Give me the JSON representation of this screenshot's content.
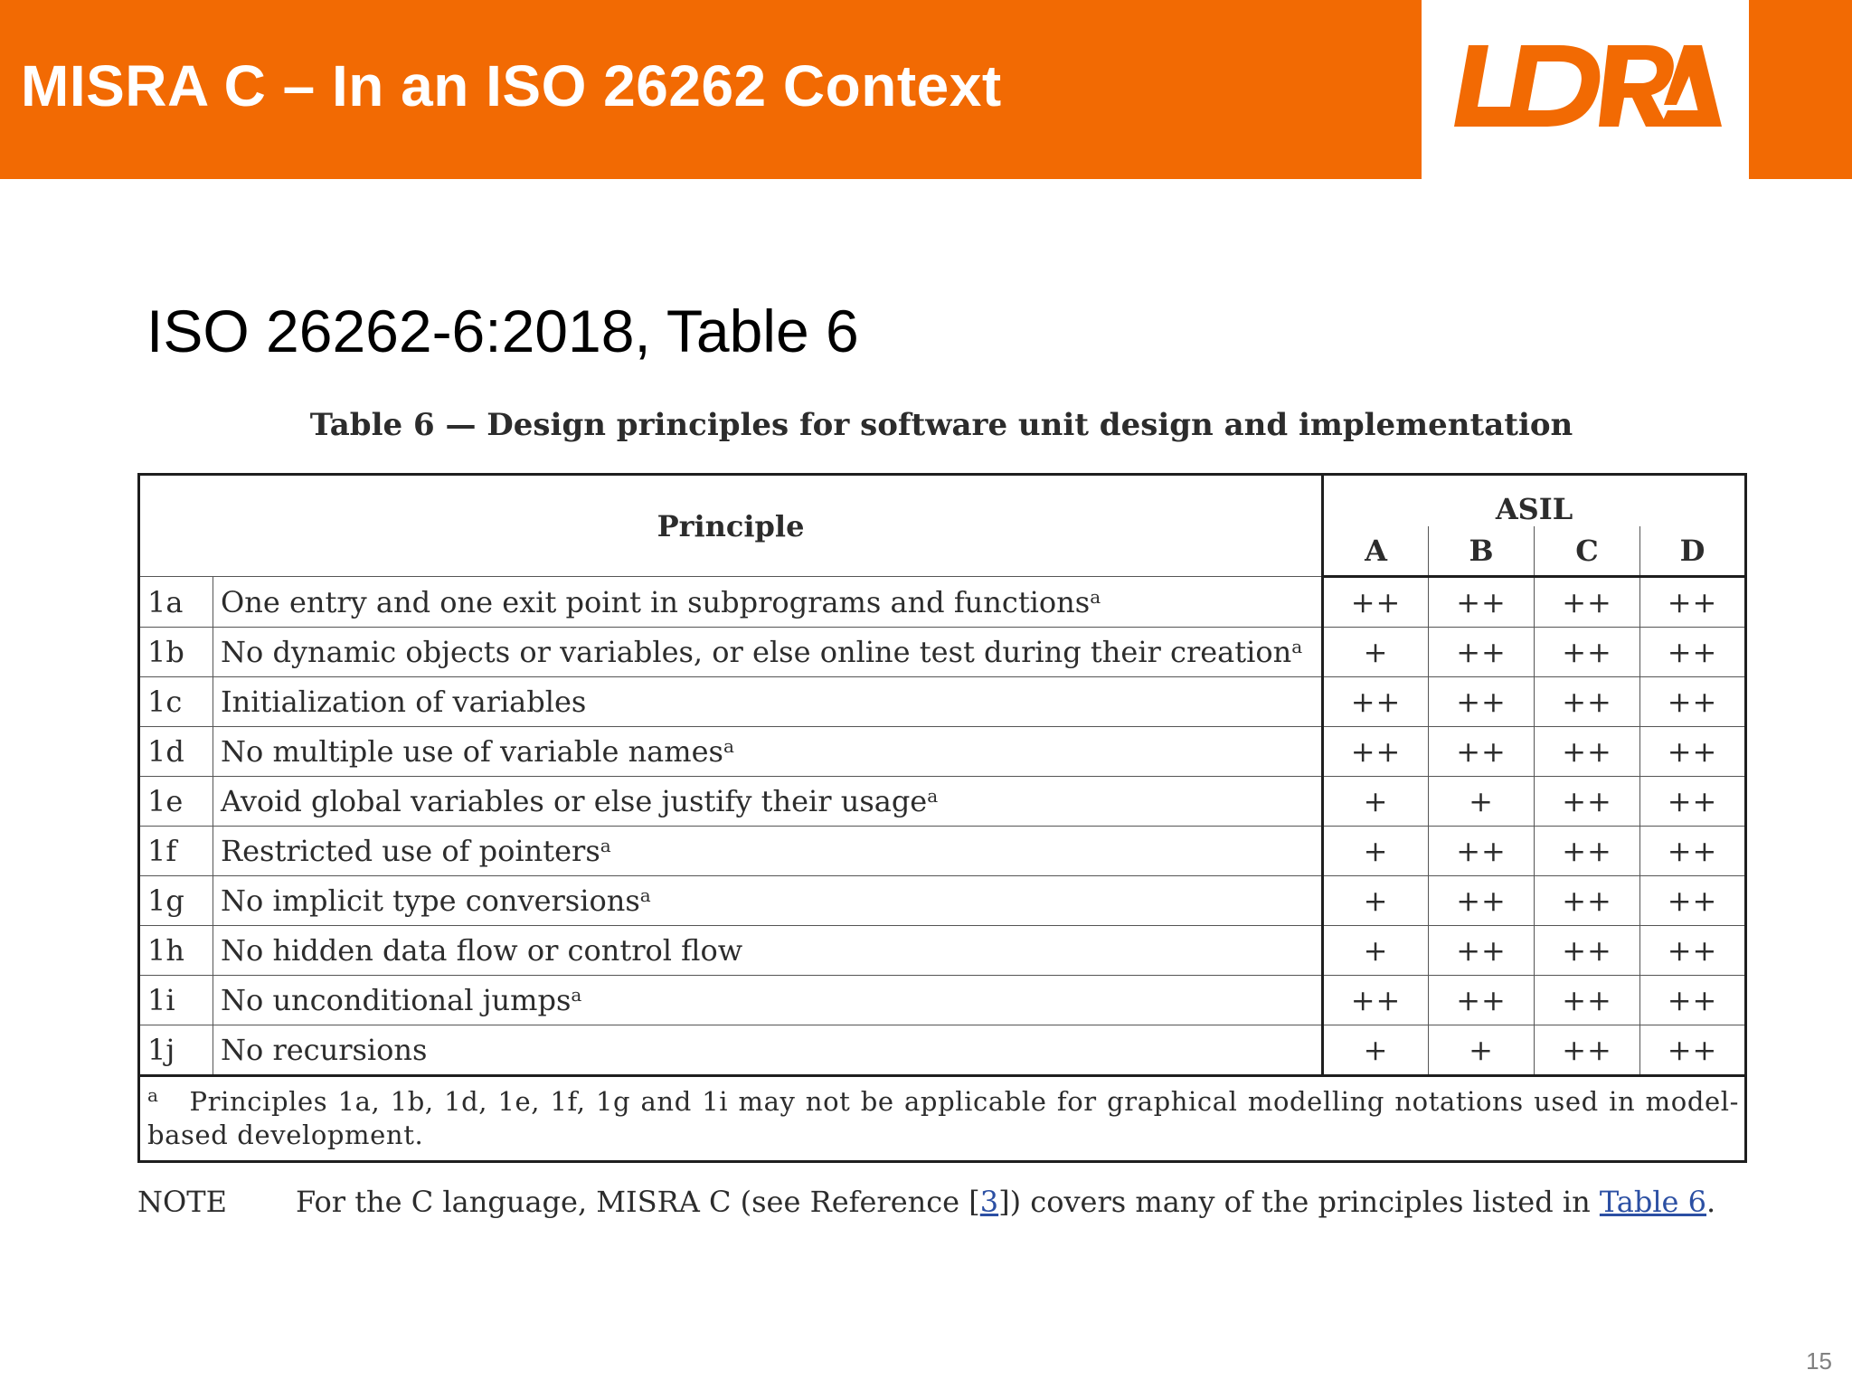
{
  "header": {
    "title": "MISRA C – In an ISO 26262 Context",
    "logo_text": "LDRA",
    "accent_color": "#f26a03"
  },
  "subtitle": "ISO 26262-6:2018, Table 6",
  "table": {
    "caption": "Table 6 — Design principles for software unit design and implementation",
    "principle_header": "Principle",
    "asil_header": "ASIL",
    "levels": [
      "A",
      "B",
      "C",
      "D"
    ],
    "rows": [
      {
        "id": "1a",
        "principle": "One entry and one exit point in subprograms and functions",
        "footnote": "a",
        "ratings": [
          "++",
          "++",
          "++",
          "++"
        ]
      },
      {
        "id": "1b",
        "principle": "No dynamic objects or variables, or else online test during their creation",
        "footnote": "a",
        "ratings": [
          "+",
          "++",
          "++",
          "++"
        ]
      },
      {
        "id": "1c",
        "principle": "Initialization of variables",
        "footnote": "",
        "ratings": [
          "++",
          "++",
          "++",
          "++"
        ]
      },
      {
        "id": "1d",
        "principle": "No multiple use of variable names",
        "footnote": "a",
        "ratings": [
          "++",
          "++",
          "++",
          "++"
        ]
      },
      {
        "id": "1e",
        "principle": "Avoid global variables or else justify their usage",
        "footnote": "a",
        "ratings": [
          "+",
          "+",
          "++",
          "++"
        ]
      },
      {
        "id": "1f",
        "principle": "Restricted use of pointers",
        "footnote": "a",
        "ratings": [
          "+",
          "++",
          "++",
          "++"
        ]
      },
      {
        "id": "1g",
        "principle": "No implicit type conversions",
        "footnote": "a",
        "ratings": [
          "+",
          "++",
          "++",
          "++"
        ]
      },
      {
        "id": "1h",
        "principle": "No hidden data flow or control flow",
        "footnote": "",
        "ratings": [
          "+",
          "++",
          "++",
          "++"
        ]
      },
      {
        "id": "1i",
        "principle": "No unconditional jumps",
        "footnote": "a",
        "ratings": [
          "++",
          "++",
          "++",
          "++"
        ]
      },
      {
        "id": "1j",
        "principle": "No recursions",
        "footnote": "",
        "ratings": [
          "+",
          "+",
          "++",
          "++"
        ]
      }
    ],
    "footnote": {
      "marker": "a",
      "text": "Principles 1a, 1b, 1d, 1e, 1f, 1g and 1i may not be applicable for graphical modelling notations used in model-based development."
    }
  },
  "note": {
    "label": "NOTE",
    "text_before": "For the C language, MISRA C (see Reference [",
    "reference_link": "3",
    "text_middle": "]) covers many of the principles listed in ",
    "table_link": "Table 6",
    "text_after": "."
  },
  "page_number": "15",
  "link_color": "#2b4fa3"
}
